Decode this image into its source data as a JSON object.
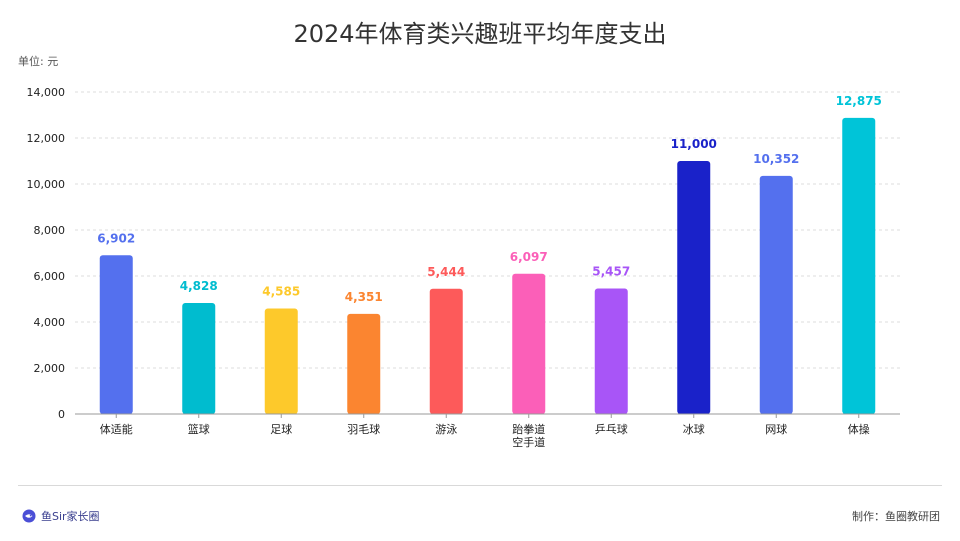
{
  "page": {
    "title": "2024年体育类兴趣班平均年度支出",
    "unit_label": "单位: 元",
    "footer": {
      "brand": "鱼Sir家长圈",
      "credit": "制作：鱼圈教研团"
    }
  },
  "chart_data": {
    "type": "bar",
    "title": "2024年体育类兴趣班平均年度支出",
    "ylabel": "单位: 元",
    "xlabel": "",
    "ylim": [
      0,
      14000
    ],
    "yticks": [
      0,
      2000,
      4000,
      6000,
      8000,
      10000,
      12000,
      14000
    ],
    "ytick_labels": [
      "0",
      "2,000",
      "4,000",
      "6,000",
      "8,000",
      "10,000",
      "12,000",
      "14,000"
    ],
    "grid": true,
    "categories": [
      "体适能",
      "篮球",
      "足球",
      "羽毛球",
      "游泳",
      "跆拳道\n空手道",
      "乒乓球",
      "冰球",
      "网球",
      "体操"
    ],
    "values": [
      6902,
      4828,
      4585,
      4351,
      5444,
      6097,
      5457,
      11000,
      10352,
      12875
    ],
    "value_labels": [
      "6,902",
      "4,828",
      "4,585",
      "4,351",
      "5,444",
      "6,097",
      "5,457",
      "11,000",
      "10,352",
      "12,875"
    ],
    "colors": [
      "#5470ee",
      "#00bccf",
      "#fdc92b",
      "#fb8530",
      "#fd5a5a",
      "#fb5fb8",
      "#a855f7",
      "#1a22c9",
      "#5470ee",
      "#00c4d8"
    ]
  }
}
